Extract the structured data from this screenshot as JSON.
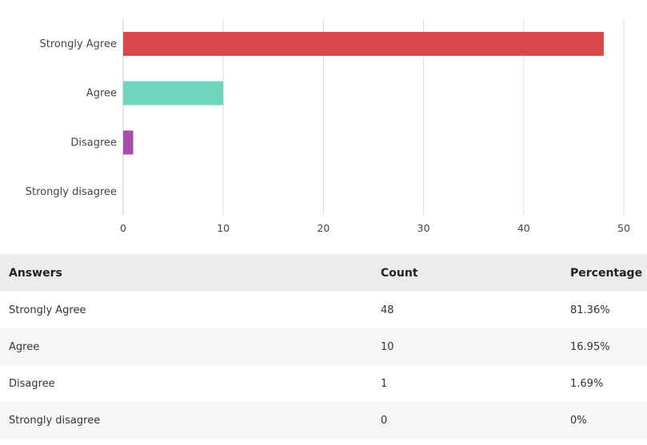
{
  "chart_data": {
    "type": "bar",
    "orientation": "horizontal",
    "categories": [
      "Strongly Agree",
      "Agree",
      "Disagree",
      "Strongly disagree"
    ],
    "values": [
      48,
      10,
      1,
      0
    ],
    "colors": [
      "#d9474b",
      "#6dd6bd",
      "#aa4daa",
      "#cccccc"
    ],
    "xlim": [
      0,
      50
    ],
    "xticks": [
      0,
      10,
      20,
      30,
      40,
      50
    ],
    "grid": true,
    "title": "",
    "xlabel": "",
    "ylabel": ""
  },
  "table": {
    "headers": [
      "Answers",
      "Count",
      "Percentage"
    ],
    "rows": [
      {
        "answer": "Strongly Agree",
        "count": "48",
        "percentage": "81.36%"
      },
      {
        "answer": "Agree",
        "count": "10",
        "percentage": "16.95%"
      },
      {
        "answer": "Disagree",
        "count": "1",
        "percentage": "1.69%"
      },
      {
        "answer": "Strongly disagree",
        "count": "0",
        "percentage": "0%"
      }
    ]
  }
}
